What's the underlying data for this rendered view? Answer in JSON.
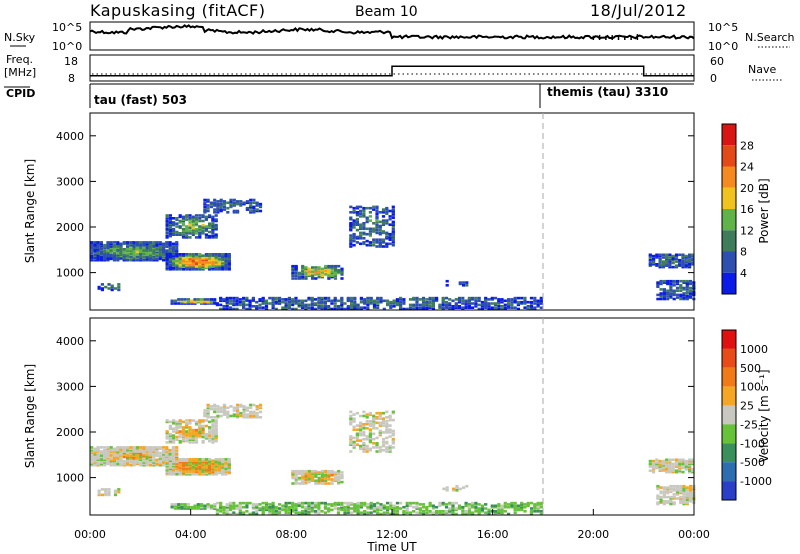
{
  "header": {
    "station": "Kapuskasing (fitACF)",
    "beam": "Beam 10",
    "date": "18/Jul/2012"
  },
  "noise_panel": {
    "left_label": "N.Sky",
    "left_ticks": [
      "10^5",
      "10^0"
    ],
    "right_ticks": [
      "10^5",
      "10^0"
    ],
    "right_label": "N.Search"
  },
  "freq_panel": {
    "label_top": "Freq.",
    "label_bottom": "[MHz]",
    "left_ticks": [
      "18",
      "8"
    ],
    "right_ticks": [
      "60",
      "0"
    ],
    "right_label": "Nave",
    "step": {
      "x": [
        0,
        12,
        12,
        22,
        22,
        24
      ],
      "y": [
        10,
        10,
        16,
        16,
        10,
        10
      ]
    }
  },
  "cpid_panel": {
    "label": "CPID",
    "modes": [
      {
        "name": "tau (fast) 503",
        "start": 0
      },
      {
        "name": "themis (tau) 3310",
        "start": 18
      }
    ]
  },
  "chart_data": [
    {
      "type": "heatmap",
      "name": "power",
      "ylabel": "Slant Range [km]",
      "ylim": [
        180,
        4500
      ],
      "yticks": [
        "1000",
        "2000",
        "3000",
        "4000"
      ],
      "colorbar_label": "Power [dB]",
      "colorbar_ticks": [
        "28",
        "24",
        "20",
        "16",
        "12",
        "8",
        "4"
      ],
      "colors": [
        "#0c1ce8",
        "#2d4fb0",
        "#3f7d5a",
        "#5fb34a",
        "#f0c31e",
        "#f58b1e",
        "#e44a18",
        "#d81414"
      ],
      "xlim": [
        0,
        24
      ]
    },
    {
      "type": "heatmap",
      "name": "velocity",
      "ylabel": "Slant Range [km]",
      "ylim": [
        180,
        4500
      ],
      "yticks": [
        "1000",
        "2000",
        "3000",
        "4000"
      ],
      "xlabel": "Time UT",
      "xticks": [
        "00:00",
        "04:00",
        "08:00",
        "12:00",
        "16:00",
        "20:00",
        "00:00"
      ],
      "colorbar_label": "Velocity [m s⁻¹]",
      "colorbar_ticks": [
        "1000",
        "500",
        "100",
        "25",
        "-25",
        "-100",
        "-500",
        "-1000"
      ],
      "colors": [
        "#2a3fc8",
        "#2d6db0",
        "#3a8f5a",
        "#67c23a",
        "#c8c8c0",
        "#f5a623",
        "#f07a18",
        "#e84a18",
        "#e01010"
      ],
      "xlim": [
        0,
        24
      ]
    }
  ]
}
